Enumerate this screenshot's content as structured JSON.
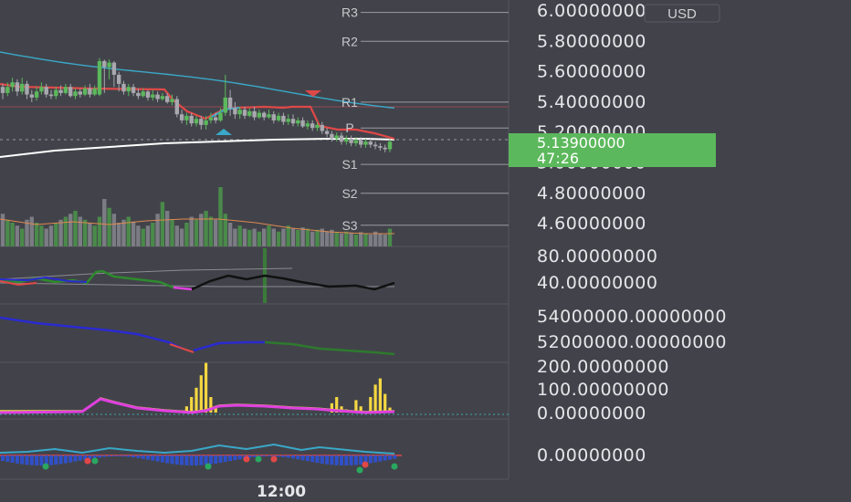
{
  "chart_data": {
    "type": "candlestick",
    "currency": "USD",
    "current_price": "5.13900000",
    "countdown": "47:26",
    "time_label": "12:00",
    "price_axis_labels": [
      "6.00000000",
      "5.80000000",
      "5.60000000",
      "5.40000000",
      "5.20000000",
      "5.00000000",
      "4.80000000",
      "4.60000000"
    ],
    "price_axis_values": [
      6.0,
      5.8,
      5.6,
      5.4,
      5.2,
      5.0,
      4.8,
      4.6
    ],
    "pivots": [
      {
        "label": "R3",
        "value": 5.99
      },
      {
        "label": "R2",
        "value": 5.8
      },
      {
        "label": "R1",
        "value": 5.4
      },
      {
        "label": "P",
        "value": 5.23
      },
      {
        "label": "S1",
        "value": 4.99
      },
      {
        "label": "S2",
        "value": 4.8
      },
      {
        "label": "S3",
        "value": 4.59
      }
    ],
    "candles": [
      [
        5.5,
        5.46,
        5.52,
        5.42
      ],
      [
        5.46,
        5.5,
        5.53,
        5.44
      ],
      [
        5.5,
        5.53,
        5.56,
        5.47
      ],
      [
        5.53,
        5.47,
        5.55,
        5.44
      ],
      [
        5.47,
        5.52,
        5.56,
        5.45
      ],
      [
        5.52,
        5.45,
        5.54,
        5.42
      ],
      [
        5.45,
        5.43,
        5.48,
        5.4
      ],
      [
        5.43,
        5.47,
        5.5,
        5.41
      ],
      [
        5.47,
        5.5,
        5.53,
        5.45
      ],
      [
        5.5,
        5.45,
        5.52,
        5.43
      ],
      [
        5.45,
        5.44,
        5.48,
        5.42
      ],
      [
        5.44,
        5.48,
        5.5,
        5.42
      ],
      [
        5.48,
        5.46,
        5.51,
        5.44
      ],
      [
        5.46,
        5.5,
        5.52,
        5.45
      ],
      [
        5.5,
        5.44,
        5.52,
        5.43
      ],
      [
        5.44,
        5.47,
        5.49,
        5.42
      ],
      [
        5.47,
        5.45,
        5.49,
        5.43
      ],
      [
        5.45,
        5.49,
        5.51,
        5.44
      ],
      [
        5.49,
        5.45,
        5.52,
        5.43
      ],
      [
        5.45,
        5.49,
        5.51,
        5.44
      ],
      [
        5.45,
        5.67,
        5.69,
        5.44
      ],
      [
        5.67,
        5.63,
        5.68,
        5.46
      ],
      [
        5.63,
        5.66,
        5.68,
        5.55
      ],
      [
        5.66,
        5.58,
        5.67,
        5.5
      ],
      [
        5.58,
        5.52,
        5.6,
        5.47
      ],
      [
        5.52,
        5.47,
        5.54,
        5.45
      ],
      [
        5.47,
        5.5,
        5.52,
        5.44
      ],
      [
        5.5,
        5.46,
        5.52,
        5.44
      ],
      [
        5.46,
        5.44,
        5.49,
        5.42
      ],
      [
        5.44,
        5.47,
        5.49,
        5.43
      ],
      [
        5.47,
        5.43,
        5.48,
        5.41
      ],
      [
        5.43,
        5.45,
        5.48,
        5.41
      ],
      [
        5.45,
        5.42,
        5.47,
        5.4
      ],
      [
        5.42,
        5.44,
        5.46,
        5.41
      ],
      [
        5.44,
        5.4,
        5.46,
        5.39
      ],
      [
        5.4,
        5.42,
        5.45,
        5.38
      ],
      [
        5.42,
        5.32,
        5.44,
        5.3
      ],
      [
        5.32,
        5.28,
        5.35,
        5.26
      ],
      [
        5.28,
        5.31,
        5.33,
        5.25
      ],
      [
        5.31,
        5.26,
        5.33,
        5.24
      ],
      [
        5.26,
        5.29,
        5.31,
        5.24
      ],
      [
        5.29,
        5.25,
        5.31,
        5.22
      ],
      [
        5.25,
        5.28,
        5.31,
        5.22
      ],
      [
        5.28,
        5.3,
        5.33,
        5.26
      ],
      [
        5.3,
        5.28,
        5.33,
        5.26
      ],
      [
        5.28,
        5.33,
        5.36,
        5.27
      ],
      [
        5.33,
        5.43,
        5.58,
        5.31
      ],
      [
        5.43,
        5.36,
        5.48,
        5.31
      ],
      [
        5.36,
        5.32,
        5.4,
        5.29
      ],
      [
        5.32,
        5.35,
        5.37,
        5.29
      ],
      [
        5.35,
        5.31,
        5.37,
        5.29
      ],
      [
        5.31,
        5.34,
        5.36,
        5.3
      ],
      [
        5.34,
        5.3,
        5.37,
        5.28
      ],
      [
        5.3,
        5.33,
        5.35,
        5.29
      ],
      [
        5.33,
        5.3,
        5.34,
        5.28
      ],
      [
        5.3,
        5.32,
        5.35,
        5.29
      ],
      [
        5.32,
        5.28,
        5.34,
        5.26
      ],
      [
        5.28,
        5.31,
        5.33,
        5.27
      ],
      [
        5.31,
        5.27,
        5.33,
        5.25
      ],
      [
        5.27,
        5.29,
        5.32,
        5.25
      ],
      [
        5.29,
        5.26,
        5.32,
        5.24
      ],
      [
        5.26,
        5.28,
        5.3,
        5.24
      ],
      [
        5.28,
        5.24,
        5.3,
        5.23
      ],
      [
        5.24,
        5.26,
        5.28,
        5.22
      ],
      [
        5.26,
        5.23,
        5.28,
        5.21
      ],
      [
        5.23,
        5.25,
        5.27,
        5.21
      ],
      [
        5.25,
        5.21,
        5.27,
        5.19
      ],
      [
        5.21,
        5.19,
        5.23,
        5.17
      ],
      [
        5.19,
        5.16,
        5.21,
        5.14
      ],
      [
        5.16,
        5.18,
        5.2,
        5.14
      ],
      [
        5.18,
        5.14,
        5.2,
        5.12
      ],
      [
        5.14,
        5.16,
        5.18,
        5.12
      ],
      [
        5.16,
        5.13,
        5.18,
        5.11
      ],
      [
        5.13,
        5.15,
        5.17,
        5.11
      ],
      [
        5.15,
        5.12,
        5.17,
        5.1
      ],
      [
        5.12,
        5.14,
        5.16,
        5.1
      ],
      [
        5.14,
        5.12,
        5.16,
        5.1
      ],
      [
        5.12,
        5.11,
        5.14,
        5.09
      ],
      [
        5.11,
        5.1,
        5.13,
        5.08
      ],
      [
        5.1,
        5.09,
        5.12,
        5.07
      ],
      [
        5.09,
        5.14,
        5.16,
        5.07
      ]
    ],
    "volume": [
      0.55,
      0.45,
      0.4,
      0.35,
      0.3,
      0.45,
      0.5,
      0.4,
      0.35,
      0.3,
      0.35,
      0.4,
      0.45,
      0.5,
      0.55,
      0.6,
      0.5,
      0.45,
      0.4,
      0.35,
      0.5,
      0.8,
      0.65,
      0.55,
      0.4,
      0.45,
      0.5,
      0.42,
      0.35,
      0.3,
      0.35,
      0.4,
      0.55,
      0.75,
      0.6,
      0.45,
      0.35,
      0.3,
      0.4,
      0.5,
      0.45,
      0.55,
      0.6,
      0.5,
      0.45,
      1.0,
      0.55,
      0.4,
      0.3,
      0.35,
      0.3,
      0.28,
      0.3,
      0.25,
      0.3,
      0.35,
      0.3,
      0.25,
      0.3,
      0.35,
      0.3,
      0.28,
      0.32,
      0.3,
      0.25,
      0.28,
      0.3,
      0.26,
      0.28,
      0.24,
      0.22,
      0.25,
      0.23,
      0.2,
      0.24,
      0.22,
      0.2,
      0.25,
      0.22,
      0.2,
      0.3
    ],
    "osc1_axis_labels": [
      "80.00000000",
      "40.00000000"
    ],
    "obv_axis_labels": [
      "54000000.00000000",
      "52000000.00000000"
    ],
    "osc3_axis_labels": [
      "200.00000000",
      "100.00000000",
      "0.00000000"
    ],
    "osc4_axis_labels": [
      "0.00000000"
    ],
    "hist3": [
      0,
      0,
      0,
      0,
      0,
      0,
      0,
      0,
      0,
      0,
      0,
      0,
      0,
      0,
      0,
      0,
      0,
      0,
      0,
      0,
      0,
      0,
      0,
      0,
      0,
      0,
      0,
      0,
      0,
      0,
      0,
      0,
      0,
      0,
      0,
      0,
      0,
      0,
      10,
      25,
      40,
      60,
      80,
      25,
      10,
      0,
      0,
      0,
      0,
      0,
      0,
      0,
      0,
      0,
      0,
      0,
      0,
      0,
      0,
      0,
      0,
      0,
      0,
      0,
      0,
      0,
      0,
      0,
      15,
      25,
      10,
      5,
      0,
      20,
      10,
      0,
      25,
      45,
      55,
      30,
      8
    ]
  }
}
